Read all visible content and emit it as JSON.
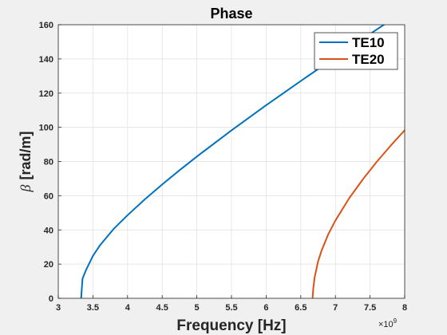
{
  "chart_data": {
    "type": "line",
    "title": "Phase",
    "xlabel": "Frequency [Hz]",
    "ylabel_symbol": "β",
    "ylabel_unit": "[rad/m]",
    "x_exponent_base": "×10",
    "x_exponent_power": "9",
    "xlim": [
      3000000000.0,
      8000000000.0
    ],
    "ylim": [
      0,
      160
    ],
    "xticks": [
      3000000000.0,
      3500000000.0,
      4000000000.0,
      4500000000.0,
      5000000000.0,
      5500000000.0,
      6000000000.0,
      6500000000.0,
      7000000000.0,
      7500000000.0,
      8000000000.0
    ],
    "xtick_labels": [
      "3",
      "3.5",
      "4",
      "4.5",
      "5",
      "5.5",
      "6",
      "6.5",
      "7",
      "7.5",
      "8"
    ],
    "yticks": [
      0,
      20,
      40,
      60,
      80,
      100,
      120,
      140,
      160
    ],
    "ytick_labels": [
      "0",
      "20",
      "40",
      "60",
      "80",
      "100",
      "120",
      "140",
      "160"
    ],
    "grid": true,
    "legend_position": "top-right",
    "series": [
      {
        "name": "TE10",
        "color": "#0072BD",
        "x": [
          3330000000.0,
          3350000000.0,
          3400000000.0,
          3500000000.0,
          3600000000.0,
          3800000000.0,
          4000000000.0,
          4250000000.0,
          4500000000.0,
          4750000000.0,
          5000000000.0,
          5500000000.0,
          6000000000.0,
          6500000000.0,
          7000000000.0,
          7500000000.0,
          8000000000.0
        ],
        "y": [
          0,
          11.5,
          16.5,
          24.8,
          30.9,
          40.6,
          48.6,
          57.9,
          66.6,
          74.9,
          82.9,
          98.2,
          112.9,
          127.1,
          141.0,
          154.6,
          168.1
        ]
      },
      {
        "name": "TE20",
        "color": "#D95319",
        "x": [
          6670000000.0,
          6680000000.0,
          6700000000.0,
          6750000000.0,
          6800000000.0,
          6900000000.0,
          7000000000.0,
          7200000000.0,
          7400000000.0,
          7600000000.0,
          7800000000.0,
          8000000000.0
        ],
        "y": [
          0,
          5.5,
          12.2,
          21.6,
          27.9,
          37.7,
          45.5,
          58.6,
          69.8,
          80.0,
          89.4,
          98.3
        ]
      }
    ]
  }
}
